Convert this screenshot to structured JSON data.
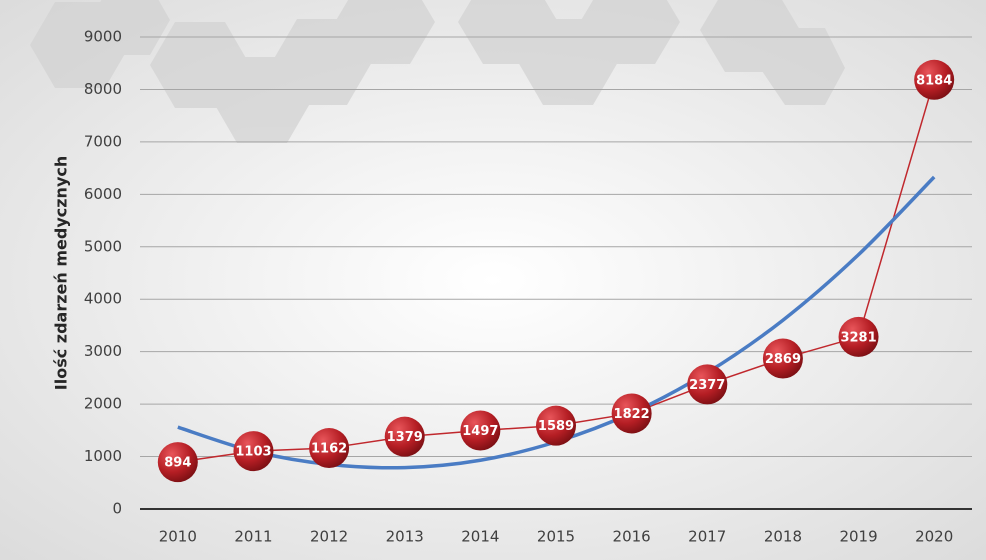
{
  "chart_data": {
    "type": "line",
    "y_label": "Ilość zdarzeń medycznych",
    "categories": [
      "2010",
      "2011",
      "2012",
      "2013",
      "2014",
      "2015",
      "2016",
      "2017",
      "2018",
      "2019",
      "2020"
    ],
    "values": [
      894,
      1103,
      1162,
      1379,
      1497,
      1589,
      1822,
      2377,
      2869,
      3281,
      8184
    ],
    "color": "#c0282d",
    "trend": {
      "color": "#4a7cc4",
      "values": [
        1560,
        1100,
        850,
        790,
        930,
        1280,
        1830,
        2600,
        3600,
        4850,
        6330
      ]
    },
    "ylim": [
      0,
      9000
    ],
    "yticks": [
      0,
      1000,
      2000,
      3000,
      4000,
      5000,
      6000,
      7000,
      8000,
      9000
    ],
    "grid": true
  }
}
